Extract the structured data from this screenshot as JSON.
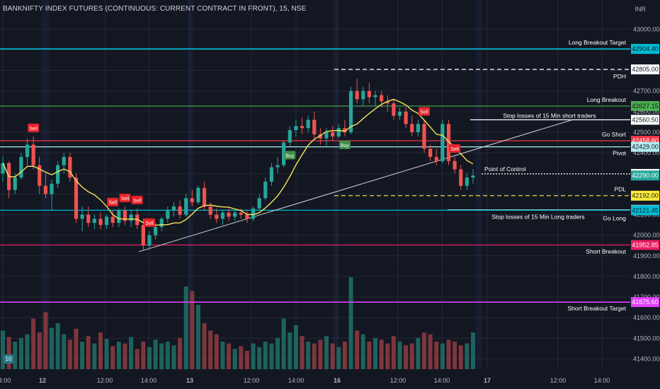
{
  "header": {
    "title": "BANKNIFTY INDEX FUTURES (CONTINUOUS: CURRENT CONTRACT IN FRONT), 15, NSE",
    "currency": "INR"
  },
  "chart_data": {
    "type": "candlestick",
    "symbol": "BANKNIFTY INDEX FUTURES (CONTINUOUS: CURRENT CONTRACT IN FRONT)",
    "interval": "15",
    "exchange": "NSE",
    "currency": "INR",
    "ylim": [
      41350,
      43080
    ],
    "y_ticks": [
      43000,
      42900,
      42800,
      42700,
      42600,
      42500,
      42400,
      42300,
      42200,
      42100,
      42000,
      41900,
      41800,
      41700,
      41600,
      41500,
      41400
    ],
    "x_ticks": [
      "14:00",
      "12",
      "12:00",
      "14:00",
      "13",
      "12:00",
      "14:00",
      "16",
      "12:00",
      "14:00",
      "17",
      "12:00",
      "14:00"
    ],
    "levels": [
      {
        "name": "Long Breakout Target",
        "price": 42904.4,
        "label": "42904.40",
        "color": "#00bcd4"
      },
      {
        "name": "PDH",
        "price": 42805.0,
        "label": "42805.00",
        "color": "#ffffff",
        "style": "dashed"
      },
      {
        "name": "Long Breakout",
        "price": 42627.15,
        "label": "42627.15",
        "color": "#4caf50"
      },
      {
        "name": "Stop losses of 15 Min short traders",
        "price": 42560.5,
        "label": "42560.50",
        "color": "#ffffff"
      },
      {
        "name": "Go Short",
        "price": 42458.6,
        "label": "42458.60",
        "color": "#f23645"
      },
      {
        "name": "Pivot",
        "price": 42429.0,
        "label": "42429.00",
        "color": "#b2ebf2"
      },
      {
        "name": "Point of Control",
        "price": 42297.7,
        "label": "42297.70",
        "color": "#ffffff",
        "style": "dotted"
      },
      {
        "name": "PDL",
        "price": 42192.0,
        "label": "42192.00",
        "color": "#ffeb3b",
        "style": "dashed"
      },
      {
        "name": "Stop losses of  15 Min Long traders",
        "price": 42123.2,
        "label": "42123.20",
        "color": "#ffffff"
      },
      {
        "name": "Go Long",
        "price": 42121.45,
        "label": "42121.45",
        "color": "#00bcd4"
      },
      {
        "name": "Short Breakout",
        "price": 41952.85,
        "label": "41952.85",
        "color": "#e91e63"
      },
      {
        "name": "Short Breakout Target",
        "price": 41675.6,
        "label": "41675.60",
        "color": "#e040fb"
      }
    ],
    "current_price": {
      "value": 42290.0,
      "label": "42290.00"
    },
    "candles": [
      [
        42300,
        42380,
        42260,
        42350
      ],
      [
        42350,
        42360,
        42180,
        42220
      ],
      [
        42220,
        42300,
        42200,
        42280
      ],
      [
        42280,
        42400,
        42270,
        42380
      ],
      [
        42380,
        42470,
        42340,
        42440
      ],
      [
        42440,
        42480,
        42320,
        42340
      ],
      [
        42340,
        42380,
        42200,
        42240
      ],
      [
        42240,
        42300,
        42180,
        42200
      ],
      [
        42200,
        42270,
        42120,
        42250
      ],
      [
        42250,
        42360,
        42230,
        42340
      ],
      [
        42340,
        42400,
        42300,
        42380
      ],
      [
        42380,
        42400,
        42260,
        42280
      ],
      [
        42280,
        42300,
        42060,
        42080
      ],
      [
        42080,
        42140,
        42020,
        42100
      ],
      [
        42100,
        42140,
        42040,
        42060
      ],
      [
        42060,
        42100,
        42030,
        42080
      ],
      [
        42080,
        42110,
        42030,
        42050
      ],
      [
        42050,
        42100,
        42030,
        42090
      ],
      [
        42090,
        42120,
        42040,
        42060
      ],
      [
        42060,
        42130,
        42040,
        42120
      ],
      [
        42120,
        42140,
        42050,
        42070
      ],
      [
        42070,
        42120,
        42040,
        42100
      ],
      [
        42100,
        42130,
        42030,
        42050
      ],
      [
        42050,
        42080,
        41930,
        41950
      ],
      [
        41950,
        42020,
        41930,
        42000
      ],
      [
        42000,
        42060,
        41980,
        42040
      ],
      [
        42040,
        42090,
        42020,
        42080
      ],
      [
        42080,
        42140,
        42060,
        42120
      ],
      [
        42120,
        42160,
        42090,
        42140
      ],
      [
        42140,
        42170,
        42080,
        42100
      ],
      [
        42100,
        42200,
        42090,
        42180
      ],
      [
        42180,
        42220,
        42140,
        42160
      ],
      [
        42160,
        42240,
        42150,
        42230
      ],
      [
        42230,
        42260,
        42120,
        42140
      ],
      [
        42140,
        42160,
        42080,
        42100
      ],
      [
        42100,
        42130,
        42060,
        42080
      ],
      [
        42080,
        42120,
        42050,
        42110
      ],
      [
        42110,
        42130,
        42070,
        42090
      ],
      [
        42090,
        42120,
        42070,
        42110
      ],
      [
        42110,
        42130,
        42080,
        42100
      ],
      [
        42100,
        42120,
        42060,
        42080
      ],
      [
        42080,
        42140,
        42070,
        42130
      ],
      [
        42130,
        42200,
        42120,
        42180
      ],
      [
        42180,
        42280,
        42170,
        42260
      ],
      [
        42260,
        42350,
        42240,
        42330
      ],
      [
        42330,
        42380,
        42300,
        42340
      ],
      [
        42340,
        42460,
        42330,
        42450
      ],
      [
        42450,
        42530,
        42430,
        42510
      ],
      [
        42510,
        42560,
        42480,
        42530
      ],
      [
        42530,
        42570,
        42490,
        42520
      ],
      [
        42520,
        42580,
        42500,
        42560
      ],
      [
        42560,
        42600,
        42470,
        42490
      ],
      [
        42490,
        42520,
        42440,
        42470
      ],
      [
        42470,
        42520,
        42430,
        42500
      ],
      [
        42500,
        42530,
        42460,
        42480
      ],
      [
        42480,
        42540,
        42470,
        42520
      ],
      [
        42520,
        42560,
        42480,
        42500
      ],
      [
        42500,
        42720,
        42490,
        42700
      ],
      [
        42700,
        42760,
        42640,
        42660
      ],
      [
        42660,
        42720,
        42630,
        42700
      ],
      [
        42700,
        42740,
        42640,
        42670
      ],
      [
        42670,
        42700,
        42630,
        42680
      ],
      [
        42680,
        42700,
        42620,
        42650
      ],
      [
        42650,
        42680,
        42600,
        42640
      ],
      [
        42640,
        42660,
        42560,
        42580
      ],
      [
        42580,
        42620,
        42560,
        42600
      ],
      [
        42600,
        42620,
        42520,
        42540
      ],
      [
        42540,
        42580,
        42480,
        42500
      ],
      [
        42500,
        42560,
        42480,
        42540
      ],
      [
        42540,
        42560,
        42400,
        42420
      ],
      [
        42420,
        42440,
        42360,
        42380
      ],
      [
        42380,
        42420,
        42340,
        42360
      ],
      [
        42360,
        42560,
        42350,
        42540
      ],
      [
        42540,
        42560,
        42340,
        42360
      ],
      [
        42360,
        42380,
        42300,
        42320
      ],
      [
        42320,
        42340,
        42220,
        42240
      ],
      [
        42240,
        42300,
        42220,
        42280
      ],
      [
        42280,
        42320,
        42250,
        42290
      ]
    ],
    "volumes": [
      0.42,
      0.35,
      0.3,
      0.34,
      0.38,
      0.55,
      0.4,
      0.62,
      0.45,
      0.5,
      0.38,
      0.32,
      0.44,
      0.3,
      0.36,
      0.28,
      0.4,
      0.33,
      0.25,
      0.3,
      0.28,
      0.35,
      0.22,
      0.3,
      0.24,
      0.32,
      0.28,
      0.3,
      0.26,
      0.34,
      0.9,
      0.85,
      0.7,
      0.5,
      0.42,
      0.38,
      0.3,
      0.28,
      0.22,
      0.25,
      0.2,
      0.28,
      0.24,
      0.3,
      0.28,
      0.34,
      0.55,
      0.4,
      0.48,
      0.36,
      0.3,
      0.28,
      0.32,
      0.36,
      0.28,
      0.24,
      0.3,
      1.0,
      0.42,
      0.38,
      0.3,
      0.34,
      0.32,
      0.28,
      0.36,
      0.3,
      0.26,
      0.28,
      0.34,
      0.4,
      0.38,
      0.3,
      0.28,
      0.32,
      0.3,
      0.26,
      0.28,
      0.4
    ],
    "signals": [
      {
        "label": "Sell",
        "type": "sell",
        "index": 5
      },
      {
        "label": "Sell",
        "type": "sell",
        "index": 18
      },
      {
        "label": "Sell",
        "type": "sell",
        "index": 20
      },
      {
        "label": "Sell",
        "type": "sell",
        "index": 22
      },
      {
        "label": "Sell",
        "type": "sell",
        "index": 24
      },
      {
        "label": "Buy",
        "type": "buy",
        "index": 47
      },
      {
        "label": "Buy",
        "type": "buy",
        "index": 56
      },
      {
        "label": "Sell",
        "type": "sell",
        "index": 69
      },
      {
        "label": "Sell",
        "type": "sell",
        "index": 74
      }
    ],
    "trendline": {
      "from": {
        "x": "12 14:00",
        "price": 41920
      },
      "to": {
        "x": "16 afternoon",
        "price": 42560
      }
    },
    "colors": {
      "up": "#26a69a",
      "down": "#ef5350",
      "ma": "#f5e45b",
      "bg": "#131722",
      "grid": "#242838",
      "session": "#1c2540"
    }
  },
  "volume_badge": "10"
}
